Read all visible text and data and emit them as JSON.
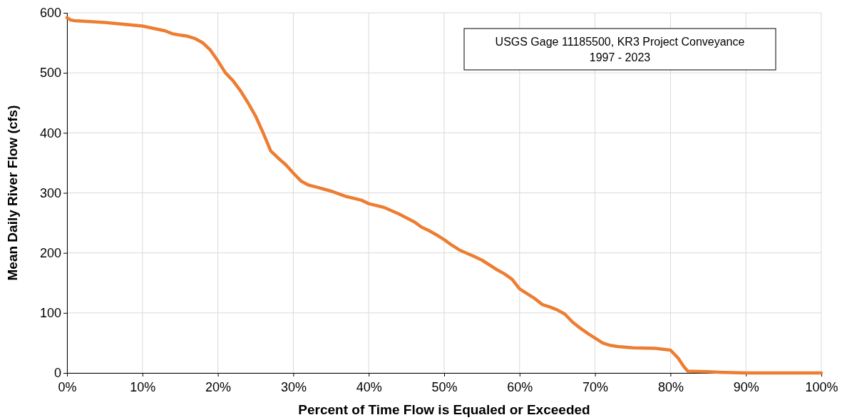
{
  "chart_data": {
    "type": "line",
    "xlabel": "Percent of Time Flow is Equaled or Exceeded",
    "ylabel": "Mean Daily River Flow (cfs)",
    "annotations": [
      "USGS Gage 11185500, KR3 Project Conveyance",
      "1997 - 2023"
    ],
    "xlim": [
      0,
      100
    ],
    "ylim": [
      0,
      600
    ],
    "xticks": [
      {
        "value": 0,
        "label": "0%"
      },
      {
        "value": 10,
        "label": "10%"
      },
      {
        "value": 20,
        "label": "20%"
      },
      {
        "value": 30,
        "label": "30%"
      },
      {
        "value": 40,
        "label": "40%"
      },
      {
        "value": 50,
        "label": "50%"
      },
      {
        "value": 60,
        "label": "60%"
      },
      {
        "value": 70,
        "label": "70%"
      },
      {
        "value": 80,
        "label": "80%"
      },
      {
        "value": 90,
        "label": "90%"
      },
      {
        "value": 100,
        "label": "100%"
      }
    ],
    "yticks": [
      0,
      100,
      200,
      300,
      400,
      500,
      600
    ],
    "grid": true,
    "marker": "none",
    "line_style": "solid",
    "series": [
      {
        "color": "#ed7d31",
        "x": [
          0,
          0.5,
          1,
          5,
          10,
          13,
          14,
          16,
          17,
          18,
          19,
          20,
          21,
          22,
          23,
          24,
          25,
          26,
          26.5,
          27,
          28,
          29,
          30,
          31,
          32,
          33,
          35,
          37,
          39,
          40,
          42,
          44,
          46,
          47,
          48,
          49,
          50,
          51,
          52,
          54,
          55,
          56,
          57,
          58,
          59,
          60,
          61,
          62,
          63,
          64,
          65,
          66,
          67,
          68,
          69,
          70,
          71,
          72,
          73,
          75,
          78,
          80,
          81,
          81.8,
          82.3,
          85,
          87,
          90,
          100
        ],
        "values": [
          592,
          588,
          587,
          584,
          578,
          570,
          565,
          561,
          557,
          550,
          538,
          520,
          500,
          487,
          470,
          450,
          428,
          400,
          385,
          370,
          358,
          347,
          333,
          320,
          313,
          310,
          303,
          294,
          288,
          282,
          276,
          265,
          252,
          243,
          237,
          230,
          222,
          213,
          205,
          194,
          188,
          180,
          172,
          165,
          156,
          140,
          132,
          124,
          114,
          110,
          105,
          98,
          85,
          75,
          66,
          58,
          50,
          46,
          44,
          42,
          41,
          38,
          25,
          10,
          3,
          2,
          1,
          0,
          0
        ]
      }
    ]
  }
}
